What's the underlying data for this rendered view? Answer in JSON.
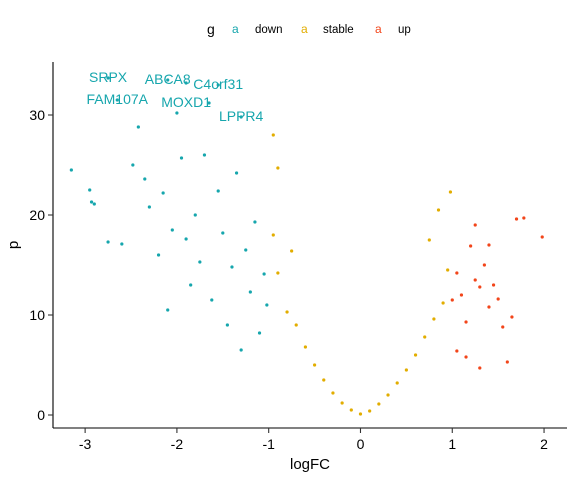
{
  "chart_data": {
    "type": "scatter",
    "title": "",
    "xlabel": "logFC",
    "ylabel": "p",
    "xlim": [
      -3.35,
      2.25
    ],
    "ylim": [
      -1.3,
      35.3
    ],
    "x_ticks": [
      "-3",
      "-2",
      "-1",
      "0",
      "1",
      "2"
    ],
    "y_ticks": [
      "0",
      "10",
      "20",
      "30"
    ],
    "legend": {
      "title": "g",
      "position": "top",
      "key_glyph": "a",
      "entries": [
        {
          "label": "down",
          "color": "#16a6ad"
        },
        {
          "label": "stable",
          "color": "#e2ad00"
        },
        {
          "label": "up",
          "color": "#f2451a"
        }
      ]
    },
    "grid": false,
    "series": [
      {
        "name": "down",
        "color": "#16a6ad",
        "points": [
          [
            -3.15,
            24.5
          ],
          [
            -2.95,
            22.5
          ],
          [
            -2.93,
            21.3
          ],
          [
            -2.9,
            21.1
          ],
          [
            -2.75,
            17.3
          ],
          [
            -2.6,
            17.1
          ],
          [
            -2.42,
            28.8
          ],
          [
            -2.48,
            25.0
          ],
          [
            -2.3,
            20.8
          ],
          [
            -2.35,
            23.6
          ],
          [
            -2.2,
            16.0
          ],
          [
            -2.15,
            22.2
          ],
          [
            -2.1,
            10.5
          ],
          [
            -2.05,
            18.5
          ],
          [
            -1.95,
            25.7
          ],
          [
            -1.9,
            17.6
          ],
          [
            -1.85,
            13.0
          ],
          [
            -1.8,
            20.0
          ],
          [
            -1.75,
            15.3
          ],
          [
            -1.7,
            26.0
          ],
          [
            -1.62,
            11.5
          ],
          [
            -1.55,
            22.4
          ],
          [
            -1.5,
            18.2
          ],
          [
            -1.45,
            9.0
          ],
          [
            -1.4,
            14.8
          ],
          [
            -1.35,
            24.2
          ],
          [
            -1.3,
            6.5
          ],
          [
            -1.25,
            16.5
          ],
          [
            -1.2,
            12.3
          ],
          [
            -1.15,
            19.3
          ],
          [
            -1.1,
            8.2
          ],
          [
            -1.05,
            14.1
          ],
          [
            -1.02,
            11.0
          ],
          [
            -2.75,
            33.7
          ],
          [
            -2.65,
            31.5
          ],
          [
            -2.1,
            33.5
          ],
          [
            -1.9,
            33.2
          ],
          [
            -1.55,
            33.0
          ],
          [
            -1.65,
            31.2
          ],
          [
            -1.3,
            29.8
          ],
          [
            -2.0,
            30.2
          ]
        ]
      },
      {
        "name": "stable",
        "color": "#e2ad00",
        "points": [
          [
            -0.95,
            18.0
          ],
          [
            -0.9,
            14.2
          ],
          [
            -0.8,
            10.3
          ],
          [
            -0.7,
            9.0
          ],
          [
            -0.6,
            6.8
          ],
          [
            -0.5,
            5.0
          ],
          [
            -0.4,
            3.5
          ],
          [
            -0.3,
            2.2
          ],
          [
            -0.2,
            1.2
          ],
          [
            -0.1,
            0.5
          ],
          [
            0.0,
            0.1
          ],
          [
            0.1,
            0.4
          ],
          [
            0.2,
            1.1
          ],
          [
            0.3,
            2.0
          ],
          [
            0.4,
            3.2
          ],
          [
            0.5,
            4.5
          ],
          [
            0.6,
            6.0
          ],
          [
            0.7,
            7.8
          ],
          [
            0.8,
            9.6
          ],
          [
            0.9,
            11.2
          ],
          [
            0.95,
            14.5
          ],
          [
            0.98,
            22.3
          ],
          [
            -0.95,
            28.0
          ],
          [
            -0.9,
            24.7
          ],
          [
            -0.75,
            16.4
          ],
          [
            0.75,
            17.5
          ],
          [
            0.85,
            20.5
          ]
        ]
      },
      {
        "name": "up",
        "color": "#f2451a",
        "points": [
          [
            1.0,
            11.5
          ],
          [
            1.05,
            14.2
          ],
          [
            1.1,
            12.0
          ],
          [
            1.15,
            9.3
          ],
          [
            1.2,
            16.9
          ],
          [
            1.25,
            13.5
          ],
          [
            1.3,
            12.8
          ],
          [
            1.35,
            15.0
          ],
          [
            1.4,
            10.8
          ],
          [
            1.45,
            13.0
          ],
          [
            1.5,
            11.6
          ],
          [
            1.55,
            8.8
          ],
          [
            1.6,
            5.3
          ],
          [
            1.65,
            9.8
          ],
          [
            1.7,
            19.6
          ],
          [
            1.78,
            19.7
          ],
          [
            1.98,
            17.8
          ],
          [
            1.15,
            5.8
          ],
          [
            1.3,
            4.7
          ],
          [
            1.05,
            6.4
          ],
          [
            1.25,
            19.0
          ],
          [
            1.4,
            17.0
          ]
        ]
      }
    ],
    "annotations": [
      {
        "text": "SRPX",
        "x": -2.75,
        "y": 33.7
      },
      {
        "text": "ABCA8",
        "x": -2.1,
        "y": 33.5
      },
      {
        "text": "C4orf31",
        "x": -1.55,
        "y": 33.0
      },
      {
        "text": "FAM107A",
        "x": -2.65,
        "y": 31.5
      },
      {
        "text": "MOXD1",
        "x": -1.9,
        "y": 31.2
      },
      {
        "text": "LPPR4",
        "x": -1.3,
        "y": 29.8
      }
    ]
  }
}
